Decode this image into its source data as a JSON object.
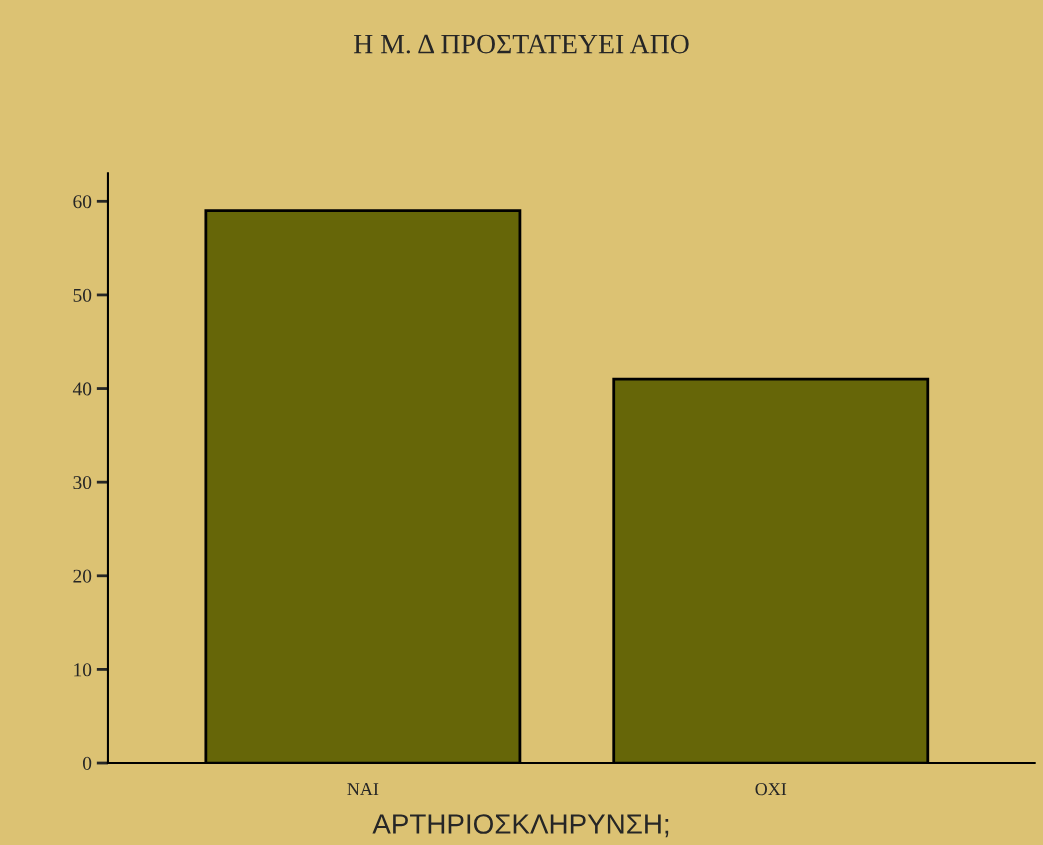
{
  "chart_data": {
    "type": "bar",
    "title": "Η Μ. Δ ΠΡΟΣΤΑΤΕΥΕΙ ΑΠΟ",
    "xlabel": "ΑΡΤΗΡΙΟΣΚΛΗΡΥΝΣΗ;",
    "categories": [
      "ΝΑΙ",
      "ΟΧΙ"
    ],
    "values": [
      59,
      41
    ],
    "color": "#666608",
    "ylim": [
      0,
      63
    ],
    "yticks": [
      0,
      10,
      20,
      30,
      40,
      50,
      60
    ],
    "grid": false,
    "legend": false
  }
}
